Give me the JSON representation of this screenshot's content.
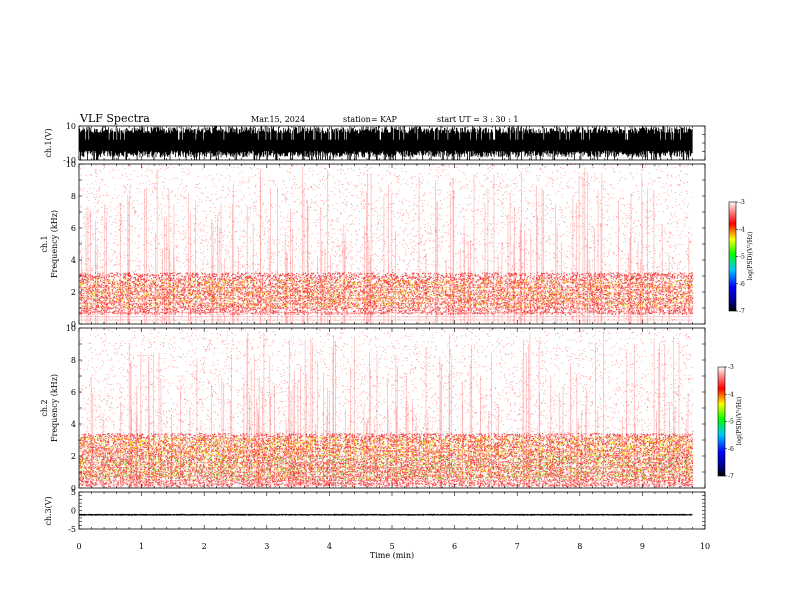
{
  "header": {
    "title": "VLF Spectra",
    "date": "Mar.15, 2024",
    "station": "station= KAP",
    "start": "start  UT =   3  : 30 : 1"
  },
  "chart_data": [
    {
      "type": "line",
      "id": "ch1-waveform",
      "ylabel": "ch.1(V)",
      "ylim": [
        -10,
        10
      ],
      "y_ticks": [
        "10",
        "-10"
      ],
      "xlim": [
        0,
        10
      ],
      "data_end_min": 9.8,
      "amplitude_range": [
        -10,
        10
      ]
    },
    {
      "type": "heatmap",
      "id": "ch1-spectrogram",
      "ylabel_lines": [
        "ch.1",
        "Frequency  (kHz)"
      ],
      "ylim": [
        0,
        10
      ],
      "y_ticks": [
        "0",
        "2",
        "4",
        "6",
        "8",
        "10"
      ],
      "xlim": [
        0,
        10
      ],
      "data_end_min": 9.8,
      "intense_band_khz": [
        1,
        3
      ],
      "colorbar": {
        "label": "log(PSD)(V²/Hz)",
        "range": [
          -7,
          -3
        ],
        "ticks": [
          "-3",
          "-4",
          "-5",
          "-6",
          "-7"
        ]
      }
    },
    {
      "type": "heatmap",
      "id": "ch2-spectrogram",
      "ylabel_lines": [
        "ch.2",
        "Frequency  (kHz)"
      ],
      "ylim": [
        0,
        10
      ],
      "y_ticks": [
        "0",
        "2",
        "4",
        "6",
        "8",
        "10"
      ],
      "xlim": [
        0,
        10
      ],
      "data_end_min": 9.8,
      "intense_band_khz": [
        0.5,
        3.2
      ],
      "colorbar": {
        "label": "log(PSD)(V²/Hz)",
        "range": [
          -7,
          -3
        ],
        "ticks": [
          "-3",
          "-4",
          "-5",
          "-6",
          "-7"
        ]
      }
    },
    {
      "type": "line",
      "id": "ch3-waveform",
      "ylabel": "ch.3(V)",
      "ylim": [
        -5,
        5
      ],
      "y_ticks": [
        "5",
        "0",
        "-5"
      ],
      "xlim": [
        0,
        10
      ],
      "xlabel": "Time  (min)",
      "x_ticks": [
        "0",
        "1",
        "2",
        "3",
        "4",
        "5",
        "6",
        "7",
        "8",
        "9",
        "10"
      ],
      "data_end_min": 9.8,
      "amplitude_range": [
        -1.4,
        -0.9
      ]
    }
  ],
  "colors": {
    "spectrogram_low": "#ff2a2a",
    "spectrogram_mid": "#e8e800",
    "spectrogram_high": "#30d000",
    "waveform": "#000000"
  }
}
